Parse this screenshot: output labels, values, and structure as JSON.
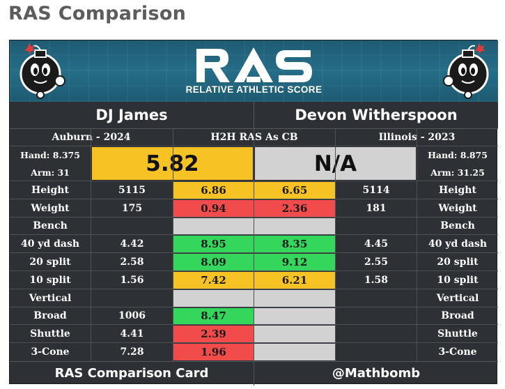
{
  "page_title": "RAS Comparison",
  "banner": {
    "logo_text": "RAS",
    "subtitle": "RELATIVE ATHLETIC SCORE",
    "colors": {
      "banner": "#256d87",
      "logo": "#ffffff"
    }
  },
  "left_player": {
    "name": "DJ James",
    "school_year": "Auburn - 2024",
    "hand_label": "Hand: 8.375",
    "arm_label": "Arm: 31",
    "score": "5.82",
    "score_color": "#f7c324"
  },
  "right_player": {
    "name": "Devon Witherspoon",
    "school_year": "Illinois - 2023",
    "hand_label": "Hand: 8.875",
    "arm_label": "Arm: 31.25",
    "score": "N/A",
    "score_color": "#d2d2d2"
  },
  "center_header": "H2H RAS As CB",
  "colors": {
    "green": "#35d65c",
    "yellow": "#f7c324",
    "red": "#f24b4b",
    "gray": "#d2d2d2"
  },
  "metrics": [
    {
      "label": "Height",
      "left_raw": "5115",
      "left_score": "6.86",
      "left_color": "yellow",
      "right_score": "6.65",
      "right_color": "yellow",
      "right_raw": "5114"
    },
    {
      "label": "Weight",
      "left_raw": "175",
      "left_score": "0.94",
      "left_color": "red",
      "right_score": "2.36",
      "right_color": "red",
      "right_raw": "181"
    },
    {
      "label": "Bench",
      "left_raw": "",
      "left_score": "",
      "left_color": "gray",
      "right_score": "",
      "right_color": "gray",
      "right_raw": ""
    },
    {
      "label": "40 yd dash",
      "left_raw": "4.42",
      "left_score": "8.95",
      "left_color": "green",
      "right_score": "8.35",
      "right_color": "green",
      "right_raw": "4.45"
    },
    {
      "label": "20 split",
      "left_raw": "2.58",
      "left_score": "8.09",
      "left_color": "green",
      "right_score": "9.12",
      "right_color": "green",
      "right_raw": "2.55"
    },
    {
      "label": "10 split",
      "left_raw": "1.56",
      "left_score": "7.42",
      "left_color": "yellow",
      "right_score": "6.21",
      "right_color": "yellow",
      "right_raw": "1.58"
    },
    {
      "label": "Vertical",
      "left_raw": "",
      "left_score": "",
      "left_color": "gray",
      "right_score": "",
      "right_color": "gray",
      "right_raw": ""
    },
    {
      "label": "Broad",
      "left_raw": "1006",
      "left_score": "8.47",
      "left_color": "green",
      "right_score": "",
      "right_color": "gray",
      "right_raw": ""
    },
    {
      "label": "Shuttle",
      "left_raw": "4.41",
      "left_score": "2.39",
      "left_color": "red",
      "right_score": "",
      "right_color": "gray",
      "right_raw": ""
    },
    {
      "label": "3-Cone",
      "left_raw": "7.28",
      "left_score": "1.96",
      "left_color": "red",
      "right_score": "",
      "right_color": "gray",
      "right_raw": ""
    }
  ],
  "footer": {
    "left_text": "RAS Comparison Card",
    "right_text": "@Mathbomb"
  }
}
